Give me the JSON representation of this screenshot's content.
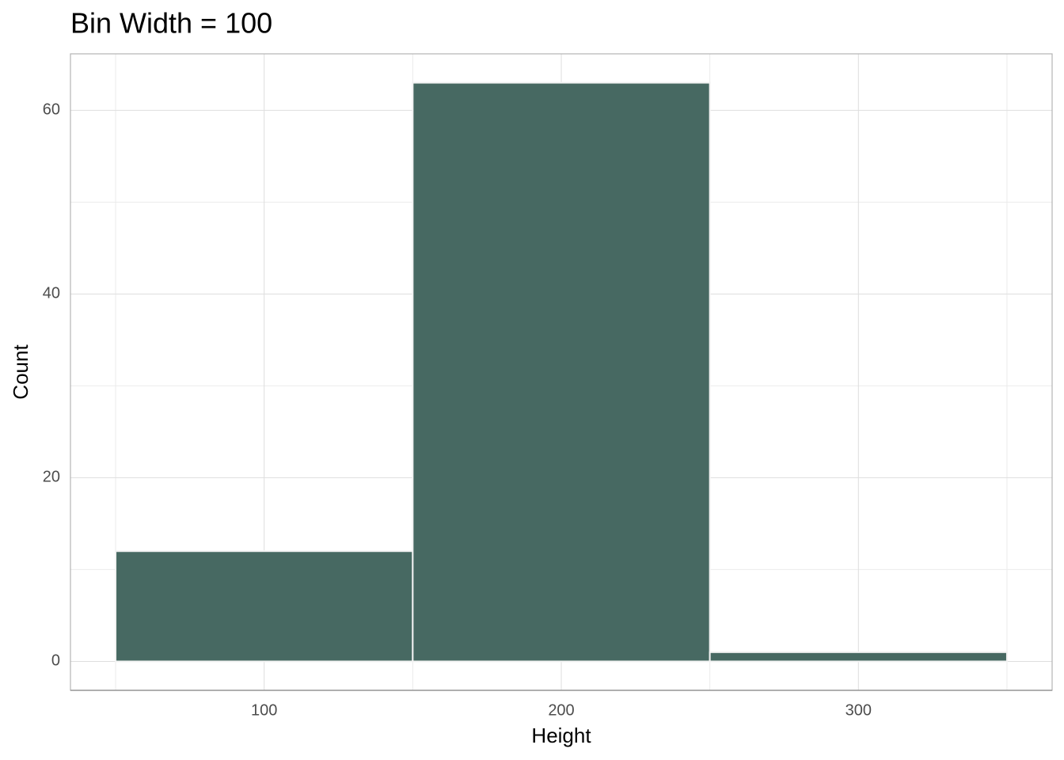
{
  "chart_data": {
    "type": "histogram",
    "title": "Bin Width = 100",
    "x_label": "Height",
    "y_label": "Count",
    "bins": [
      50,
      150,
      250,
      350
    ],
    "values": [
      12,
      63,
      1
    ],
    "color": "#476962",
    "xlim": [
      34.8,
      365.2
    ],
    "ylim": [
      -3.15,
      66.15
    ],
    "xticks": [
      100,
      200,
      300
    ],
    "yticks": [
      0,
      20,
      40,
      60
    ],
    "minor_xticks": [
      50,
      150,
      250,
      350
    ],
    "minor_yticks": [
      10,
      30,
      50
    ],
    "grid": true
  }
}
